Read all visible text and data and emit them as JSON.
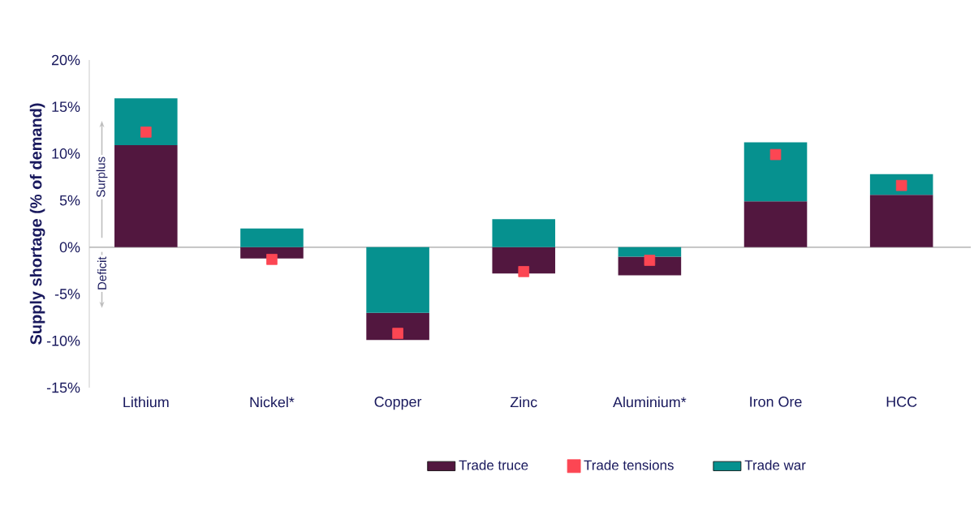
{
  "chart_data": {
    "type": "bar",
    "categories": [
      "Lithium",
      "Nickel*",
      "Copper",
      "Zinc",
      "Aluminium*",
      "Iron Ore",
      "HCC"
    ],
    "ylabel": "Supply shortage (% of demand)",
    "ylim": [
      -15,
      20
    ],
    "yticks": [
      {
        "value": -15,
        "label": "-15%"
      },
      {
        "value": -10,
        "label": "-10%"
      },
      {
        "value": -5,
        "label": "-5%"
      },
      {
        "value": 0,
        "label": "0%"
      },
      {
        "value": 5,
        "label": "5%"
      },
      {
        "value": 10,
        "label": "10%"
      },
      {
        "value": 15,
        "label": "15%"
      },
      {
        "value": 20,
        "label": "20%"
      }
    ],
    "series": [
      {
        "name": "Trade truce",
        "color": "#52173f",
        "values": [
          10.9,
          -1.2,
          -2.9,
          -2.8,
          -2,
          4.9,
          5.6
        ],
        "base": [
          0,
          0,
          -7,
          0,
          -1,
          0,
          0
        ]
      },
      {
        "name": "Trade tensions",
        "type": "scatter",
        "marker": "square",
        "color": "#fc4653",
        "values": [
          12.3,
          -1.3,
          -9.2,
          -2.6,
          -1.4,
          9.9,
          6.6
        ]
      },
      {
        "name": "Trade war",
        "color": "#06918f",
        "values": [
          5,
          2,
          -7,
          3,
          -1,
          6.3,
          2.2
        ],
        "base": [
          10.9,
          0,
          0,
          0,
          0,
          4.9,
          5.6
        ]
      }
    ],
    "annotations": [
      "Surplus",
      "Deficit"
    ],
    "legend": "bottom"
  }
}
